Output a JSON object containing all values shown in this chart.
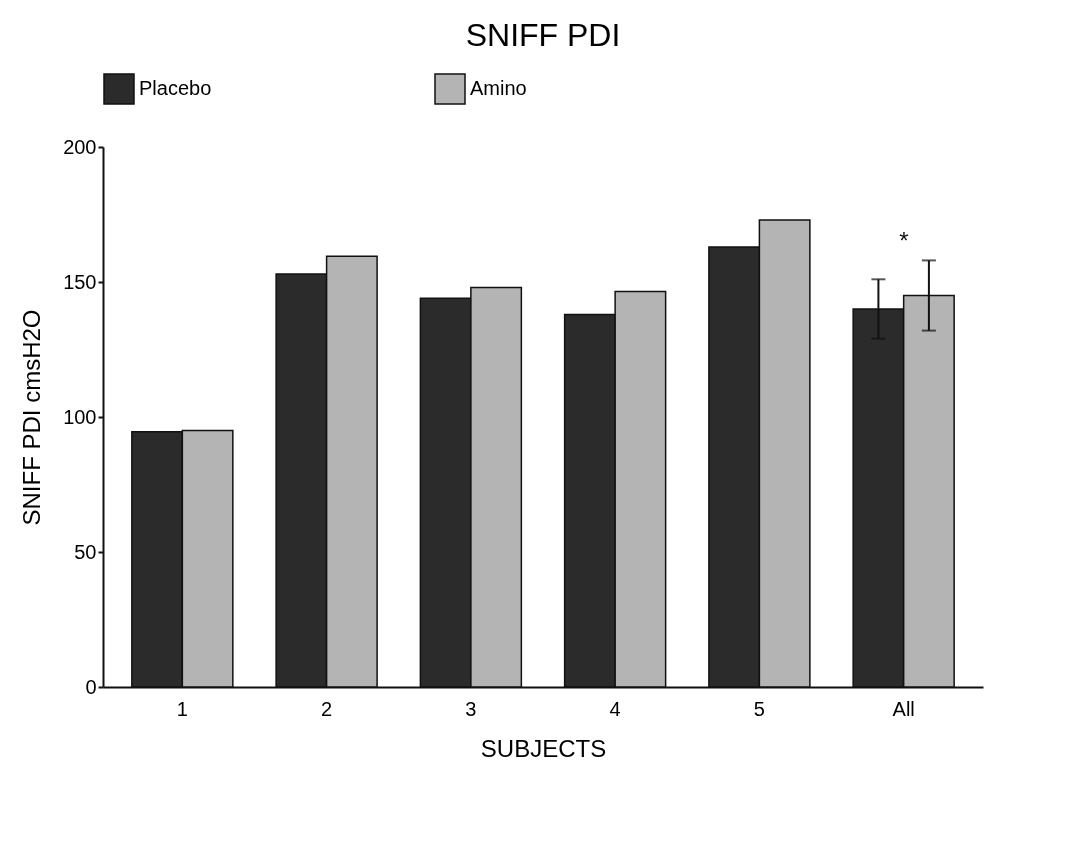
{
  "chart_data": {
    "type": "bar",
    "title": "SNIFF PDI",
    "xlabel": "SUBJECTS",
    "ylabel": "SNIFF PDI cmsH2O",
    "categories": [
      "1",
      "2",
      "3",
      "4",
      "5",
      "All"
    ],
    "series": [
      {
        "name": "Placebo",
        "color": "#2b2b2b",
        "values": [
          94.5,
          153,
          144,
          138,
          163,
          140
        ],
        "errors": [
          null,
          null,
          null,
          null,
          null,
          11
        ]
      },
      {
        "name": "Amino",
        "color": "#b4b4b4",
        "values": [
          95,
          159.5,
          148,
          146.5,
          173,
          145
        ],
        "errors": [
          null,
          null,
          null,
          null,
          null,
          13
        ]
      }
    ],
    "ylim": [
      0,
      200
    ],
    "yticks": [
      0,
      50,
      100,
      150,
      200
    ],
    "grid": false,
    "legend": "top",
    "annotations": [
      "*"
    ]
  }
}
